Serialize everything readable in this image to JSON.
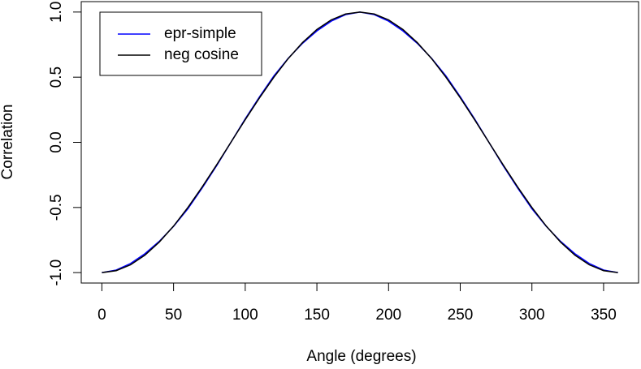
{
  "chart_data": {
    "type": "line",
    "x_label": "Angle (degrees)",
    "y_label": "Correlation",
    "x": [
      0,
      10,
      20,
      30,
      40,
      50,
      60,
      70,
      80,
      90,
      100,
      110,
      120,
      130,
      140,
      150,
      160,
      170,
      180,
      190,
      200,
      210,
      220,
      230,
      240,
      250,
      260,
      270,
      280,
      290,
      300,
      310,
      320,
      330,
      340,
      350,
      360
    ],
    "series": [
      {
        "name": "epr-simple",
        "color": "#0000ff",
        "values": [
          -1,
          -0.98,
          -0.93,
          -0.855,
          -0.76,
          -0.645,
          -0.51,
          -0.35,
          -0.18,
          0,
          0.18,
          0.35,
          0.51,
          0.645,
          0.76,
          0.855,
          0.93,
          0.98,
          1,
          0.98,
          0.93,
          0.855,
          0.76,
          0.645,
          0.51,
          0.35,
          0.18,
          0,
          -0.18,
          -0.35,
          -0.51,
          -0.645,
          -0.76,
          -0.855,
          -0.93,
          -0.98,
          -1
        ]
      },
      {
        "name": "neg cosine",
        "color": "#000000",
        "values": [
          -1,
          -0.985,
          -0.94,
          -0.866,
          -0.766,
          -0.643,
          -0.5,
          -0.342,
          -0.174,
          0,
          0.174,
          0.342,
          0.5,
          0.643,
          0.766,
          0.866,
          0.94,
          0.985,
          1,
          0.985,
          0.94,
          0.866,
          0.766,
          0.643,
          0.5,
          0.342,
          0.174,
          0,
          -0.174,
          -0.342,
          -0.5,
          -0.643,
          -0.766,
          -0.866,
          -0.94,
          -0.985,
          -1
        ]
      }
    ],
    "xlim": [
      -14.4,
      374.4
    ],
    "ylim": [
      -1.08,
      1.08
    ],
    "xticks": [
      0,
      50,
      100,
      150,
      200,
      250,
      300,
      350
    ],
    "yticks": [
      {
        "value": -1,
        "label": "-1.0"
      },
      {
        "value": -0.5,
        "label": "-0.5"
      },
      {
        "value": 0,
        "label": "0.0"
      },
      {
        "value": 0.5,
        "label": "0.5"
      },
      {
        "value": 1,
        "label": "1.0"
      }
    ],
    "legend": "top-left"
  }
}
